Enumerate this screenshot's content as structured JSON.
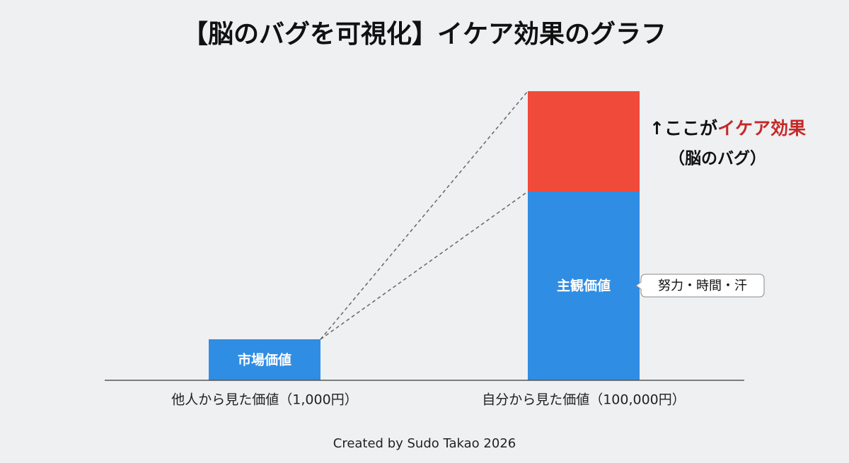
{
  "title": "【脳のバグを可視化】イケア効果のグラフ",
  "bars": [
    {
      "label": "市場価値",
      "category": "他人から見た価値（1,000円）"
    },
    {
      "label": "主観価値",
      "category": "自分から見た価値（100,000円）",
      "callout": "努力・時間・汗"
    }
  ],
  "annotation": {
    "arrow": "↑",
    "prefix": "ここが",
    "highlight": "イケア効果",
    "note": "（脳のバグ）"
  },
  "footer": "Created by Sudo Takao 2026"
}
